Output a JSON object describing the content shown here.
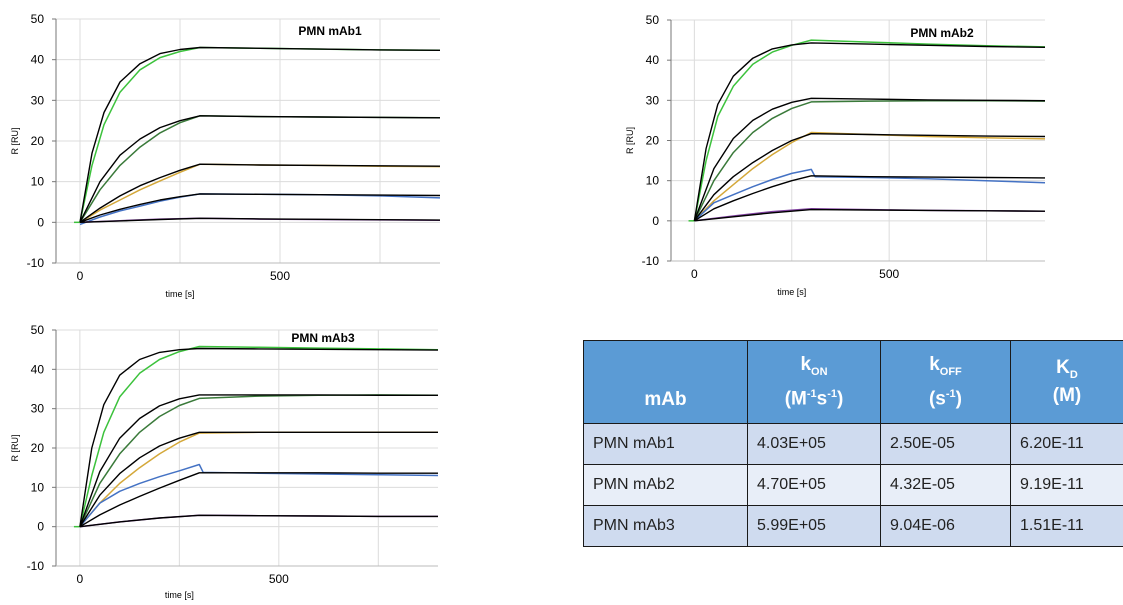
{
  "chart_data": [
    {
      "type": "line",
      "title": "PMN  mAb1",
      "xlabel": "time [s]",
      "ylabel": "R [RU]",
      "xlim": [
        -60,
        900
      ],
      "ylim": [
        -10,
        50
      ],
      "xticks": [
        0,
        500
      ],
      "yticks": [
        -10,
        0,
        10,
        20,
        30,
        40,
        50
      ],
      "grid": true,
      "association_end": 300,
      "series": [
        {
          "color": "#3cc23c",
          "x": [
            0,
            30,
            60,
            100,
            150,
            200,
            250,
            300,
            450,
            600,
            750,
            900
          ],
          "y": [
            0,
            14,
            24,
            32,
            37.5,
            40.5,
            42,
            43,
            42.8,
            42.6,
            42.4,
            42.3
          ]
        },
        {
          "color": "#3a7a3a",
          "x": [
            0,
            50,
            100,
            150,
            200,
            250,
            300,
            450,
            600,
            750,
            900
          ],
          "y": [
            0,
            8,
            14,
            18.5,
            22,
            24.5,
            26.2,
            26,
            25.9,
            25.8,
            25.7
          ]
        },
        {
          "color": "#d4a83a",
          "x": [
            0,
            50,
            100,
            150,
            200,
            250,
            300,
            450,
            600,
            750,
            900
          ],
          "y": [
            0,
            3,
            5.5,
            8,
            10.2,
            12.3,
            14.3,
            14.1,
            14,
            13.8,
            13.7
          ]
        },
        {
          "color": "#4472c4",
          "x": [
            0,
            50,
            100,
            150,
            200,
            250,
            300,
            450,
            600,
            750,
            900
          ],
          "y": [
            -0.5,
            1.3,
            2.8,
            4,
            5.2,
            6.2,
            7,
            6.9,
            6.8,
            6.5,
            6
          ]
        },
        {
          "color": "#8040a0",
          "x": [
            0,
            100,
            200,
            300,
            450,
            600,
            750,
            900
          ],
          "y": [
            0,
            0.4,
            0.8,
            1,
            0.8,
            0.7,
            0.6,
            0.5
          ]
        }
      ],
      "fits": [
        {
          "x": [
            0,
            30,
            60,
            100,
            150,
            200,
            250,
            300,
            450,
            600,
            750,
            900
          ],
          "y": [
            0,
            17,
            27,
            34.5,
            39,
            41.5,
            42.5,
            43,
            42.8,
            42.6,
            42.4,
            42.3
          ]
        },
        {
          "x": [
            0,
            50,
            100,
            150,
            200,
            250,
            300,
            450,
            600,
            750,
            900
          ],
          "y": [
            0,
            10,
            16.5,
            20.5,
            23.3,
            25,
            26.2,
            26,
            25.9,
            25.8,
            25.7
          ]
        },
        {
          "x": [
            0,
            50,
            100,
            150,
            200,
            250,
            300,
            450,
            600,
            750,
            900
          ],
          "y": [
            0,
            3.5,
            6.5,
            9,
            11,
            12.8,
            14.3,
            14.1,
            14,
            13.9,
            13.8
          ]
        },
        {
          "x": [
            0,
            50,
            100,
            150,
            200,
            250,
            300,
            450,
            600,
            750,
            900
          ],
          "y": [
            0,
            1.8,
            3.2,
            4.4,
            5.5,
            6.3,
            7,
            6.9,
            6.8,
            6.7,
            6.6
          ]
        },
        {
          "x": [
            0,
            100,
            200,
            300,
            450,
            600,
            750,
            900
          ],
          "y": [
            0,
            0.35,
            0.7,
            1,
            0.85,
            0.75,
            0.65,
            0.55
          ]
        }
      ]
    },
    {
      "type": "line",
      "title": "PMN  mAb2",
      "xlabel": "time [s]",
      "ylabel": "R [RU]",
      "xlim": [
        -60,
        900
      ],
      "ylim": [
        -10,
        50
      ],
      "xticks": [
        0,
        500
      ],
      "yticks": [
        -10,
        0,
        10,
        20,
        30,
        40,
        50
      ],
      "grid": true,
      "association_end": 300,
      "series": [
        {
          "color": "#3cc23c",
          "x": [
            0,
            30,
            60,
            100,
            150,
            200,
            250,
            300,
            450,
            600,
            750,
            900
          ],
          "y": [
            0,
            15,
            26,
            33.5,
            39,
            42,
            43.7,
            45,
            44.5,
            44,
            43.6,
            43.3
          ]
        },
        {
          "color": "#3a7a3a",
          "x": [
            0,
            50,
            100,
            150,
            200,
            250,
            300,
            450,
            600,
            750,
            900
          ],
          "y": [
            0,
            10,
            17,
            22,
            25.5,
            28,
            29.6,
            29.8,
            29.9,
            29.9,
            29.8
          ]
        },
        {
          "color": "#d4a83a",
          "x": [
            0,
            50,
            100,
            150,
            200,
            250,
            300,
            450,
            600,
            750,
            900
          ],
          "y": [
            0,
            5,
            9,
            13,
            16.5,
            19.5,
            22,
            21.5,
            21,
            20.7,
            20.4
          ]
        },
        {
          "color": "#4472c4",
          "x": [
            0,
            50,
            100,
            150,
            200,
            250,
            300,
            310,
            450,
            600,
            750,
            900
          ],
          "y": [
            0,
            4.5,
            6.5,
            8.5,
            10.3,
            11.8,
            12.8,
            11,
            10.8,
            10.5,
            10,
            9.5
          ]
        },
        {
          "color": "#8040a0",
          "x": [
            0,
            100,
            200,
            300,
            450,
            600,
            750,
            900
          ],
          "y": [
            0,
            1.2,
            2.3,
            3,
            2.8,
            2.6,
            2.5,
            2.4
          ]
        }
      ],
      "fits": [
        {
          "x": [
            0,
            30,
            60,
            100,
            150,
            200,
            250,
            300,
            450,
            600,
            750,
            900
          ],
          "y": [
            0,
            18,
            29,
            36,
            40.5,
            42.8,
            43.8,
            44.3,
            44,
            43.7,
            43.4,
            43.2
          ]
        },
        {
          "x": [
            0,
            50,
            100,
            150,
            200,
            250,
            300,
            450,
            600,
            750,
            900
          ],
          "y": [
            0,
            13,
            20.5,
            25,
            27.8,
            29.5,
            30.5,
            30.3,
            30.1,
            30,
            29.9
          ]
        },
        {
          "x": [
            0,
            50,
            100,
            150,
            200,
            250,
            300,
            450,
            600,
            750,
            900
          ],
          "y": [
            0,
            6.5,
            11,
            14.5,
            17.5,
            20,
            21.7,
            21.5,
            21.3,
            21.1,
            21
          ]
        },
        {
          "x": [
            0,
            50,
            100,
            150,
            200,
            250,
            300,
            450,
            600,
            750,
            900
          ],
          "y": [
            0,
            3,
            5,
            6.8,
            8.5,
            10,
            11.2,
            11,
            10.9,
            10.8,
            10.7
          ]
        },
        {
          "x": [
            0,
            100,
            200,
            300,
            450,
            600,
            750,
            900
          ],
          "y": [
            0,
            1,
            2,
            2.8,
            2.7,
            2.6,
            2.5,
            2.4
          ]
        }
      ]
    },
    {
      "type": "line",
      "title": "PMN  mAb3",
      "xlabel": "time [s]",
      "ylabel": "R [RU]",
      "xlim": [
        -60,
        900
      ],
      "ylim": [
        -10,
        50
      ],
      "xticks": [
        0,
        500
      ],
      "yticks": [
        -10,
        0,
        10,
        20,
        30,
        40,
        50
      ],
      "grid": true,
      "association_end": 300,
      "series": [
        {
          "color": "#3cc23c",
          "x": [
            0,
            30,
            60,
            100,
            150,
            200,
            250,
            300,
            450,
            600,
            750,
            900
          ],
          "y": [
            0,
            13,
            24,
            33,
            39,
            42.5,
            44.5,
            45.8,
            45.6,
            45.4,
            45.2,
            45
          ]
        },
        {
          "color": "#3a7a3a",
          "x": [
            0,
            50,
            100,
            150,
            200,
            250,
            300,
            450,
            600,
            750,
            900
          ],
          "y": [
            0,
            11,
            18.5,
            24,
            28,
            30.8,
            32.6,
            33.2,
            33.4,
            33.5,
            33.4
          ]
        },
        {
          "color": "#d4a83a",
          "x": [
            0,
            50,
            100,
            150,
            200,
            250,
            300,
            450,
            600,
            750,
            900
          ],
          "y": [
            0,
            6,
            11,
            15,
            18.5,
            21.5,
            23.8,
            24,
            24,
            24,
            24
          ]
        },
        {
          "color": "#4472c4",
          "x": [
            0,
            50,
            100,
            150,
            200,
            250,
            300,
            310,
            450,
            600,
            750,
            900
          ],
          "y": [
            0,
            6,
            9,
            11,
            12.7,
            14.2,
            15.8,
            13.8,
            13.6,
            13.4,
            13.2,
            13
          ]
        },
        {
          "color": "#8040a0",
          "x": [
            0,
            100,
            200,
            300,
            450,
            600,
            750,
            900
          ],
          "y": [
            0,
            1.2,
            2.2,
            2.9,
            2.8,
            2.7,
            2.6,
            2.6
          ]
        }
      ],
      "fits": [
        {
          "x": [
            0,
            30,
            60,
            100,
            150,
            200,
            250,
            300,
            450,
            600,
            750,
            900
          ],
          "y": [
            0,
            20,
            31,
            38.5,
            42.5,
            44.3,
            45,
            45.3,
            45.2,
            45.1,
            45,
            44.9
          ]
        },
        {
          "x": [
            0,
            50,
            100,
            150,
            200,
            250,
            300,
            450,
            600,
            750,
            900
          ],
          "y": [
            0,
            14,
            22.5,
            27.5,
            30.7,
            32.5,
            33.5,
            33.5,
            33.5,
            33.4,
            33.4
          ]
        },
        {
          "x": [
            0,
            50,
            100,
            150,
            200,
            250,
            300,
            450,
            600,
            750,
            900
          ],
          "y": [
            0,
            8,
            13.5,
            17.5,
            20.5,
            22.5,
            24,
            24,
            24,
            24,
            24
          ]
        },
        {
          "x": [
            0,
            50,
            100,
            150,
            200,
            250,
            300,
            450,
            600,
            750,
            900
          ],
          "y": [
            0,
            3,
            5.5,
            7.7,
            9.8,
            11.8,
            13.7,
            13.7,
            13.7,
            13.6,
            13.6
          ]
        },
        {
          "x": [
            0,
            100,
            200,
            300,
            450,
            600,
            750,
            900
          ],
          "y": [
            0,
            1.2,
            2.2,
            2.9,
            2.8,
            2.7,
            2.6,
            2.6
          ]
        }
      ]
    }
  ],
  "table": {
    "headers": [
      {
        "main": "mAb"
      },
      {
        "main": "k",
        "sub": "ON",
        "unit_a": "(M",
        "sup_a": "-1",
        "unit_b": "s",
        "sup_b": "-1",
        "unit_c": ")"
      },
      {
        "main": "k",
        "sub": "OFF",
        "unit_a": "(s",
        "sup_a": "-1",
        "unit_c": ")"
      },
      {
        "main": "K",
        "sub": "D",
        "unit_a": "(M)"
      }
    ],
    "rows": [
      [
        "PMN mAb1",
        "4.03E+05",
        "2.50E-05",
        "6.20E-11"
      ],
      [
        "PMN mAb2",
        "4.70E+05",
        "4.32E-05",
        "9.19E-11"
      ],
      [
        "PMN mAb3",
        "5.99E+05",
        "9.04E-06",
        "1.51E-11"
      ]
    ]
  }
}
